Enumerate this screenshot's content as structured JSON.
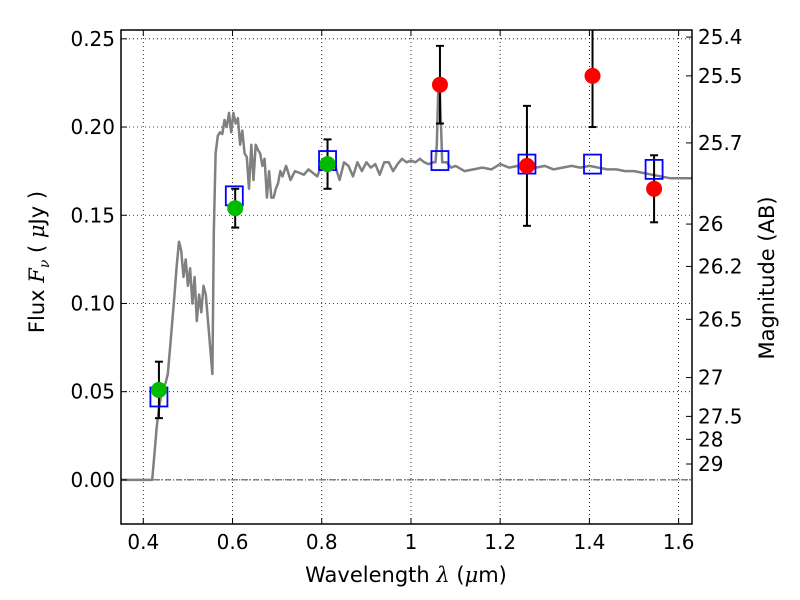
{
  "chart_data": {
    "type": "scatter",
    "title": "",
    "xlabel": "Wavelength  λ (μm)",
    "ylabel": "Flux  F_ν  ( μJy )",
    "xlabel_parts": {
      "prefix": "Wavelength  ",
      "symbol": "λ",
      "unit_open": " (",
      "unit_mu": "μ",
      "unit_rest": "m)"
    },
    "ylabel_parts": {
      "prefix": "Flux  ",
      "symbol": "F",
      "subscript": "ν",
      "unit_open": "  ( ",
      "unit_mu": "μ",
      "unit_rest": "Jy )"
    },
    "y2label": "Magnitude (AB)",
    "xlim": [
      0.35,
      1.63
    ],
    "ylim": [
      -0.025,
      0.255
    ],
    "x_ticks": [
      0.4,
      0.6,
      0.8,
      1.0,
      1.2,
      1.4,
      1.6
    ],
    "x_tick_labels": [
      "0.4",
      "0.6",
      "0.8",
      "1",
      "1.2",
      "1.4",
      "1.6"
    ],
    "y_ticks": [
      0.0,
      0.05,
      0.1,
      0.15,
      0.2,
      0.25
    ],
    "y_tick_labels": [
      "0.00",
      "0.05",
      "0.10",
      "0.15",
      "0.20",
      "0.25"
    ],
    "y2_ticks": [
      {
        "label": "25.4",
        "flux": 0.251
      },
      {
        "label": "25.5",
        "flux": 0.229
      },
      {
        "label": "25.7",
        "flux": 0.191
      },
      {
        "label": "26",
        "flux": 0.145
      },
      {
        "label": "26.2",
        "flux": 0.121
      },
      {
        "label": "26.5",
        "flux": 0.091
      },
      {
        "label": "27",
        "flux": 0.058
      },
      {
        "label": "27.5",
        "flux": 0.036
      },
      {
        "label": "28",
        "flux": 0.023
      },
      {
        "label": "29",
        "flux": 0.009
      }
    ],
    "grid": true,
    "colors": {
      "model": "#808080",
      "green": "#00bb00",
      "red": "#ff0000",
      "blue": "#0000ff",
      "axis": "#000000"
    },
    "series": [
      {
        "kind": "line",
        "points": [
          [
            0.35,
            0.0
          ],
          [
            0.412,
            0.0
          ],
          [
            0.415,
            0.0
          ],
          [
            0.42,
            0.0
          ],
          [
            0.425,
            0.015
          ],
          [
            0.43,
            0.03
          ],
          [
            0.435,
            0.04
          ],
          [
            0.44,
            0.048
          ],
          [
            0.445,
            0.052
          ],
          [
            0.45,
            0.055
          ],
          [
            0.455,
            0.06
          ],
          [
            0.46,
            0.075
          ],
          [
            0.465,
            0.09
          ],
          [
            0.47,
            0.105
          ],
          [
            0.475,
            0.122
          ],
          [
            0.48,
            0.135
          ],
          [
            0.485,
            0.13
          ],
          [
            0.49,
            0.115
          ],
          [
            0.495,
            0.125
          ],
          [
            0.5,
            0.11
          ],
          [
            0.505,
            0.12
          ],
          [
            0.51,
            0.1
          ],
          [
            0.515,
            0.115
          ],
          [
            0.52,
            0.09
          ],
          [
            0.525,
            0.105
          ],
          [
            0.53,
            0.095
          ],
          [
            0.535,
            0.11
          ],
          [
            0.54,
            0.105
          ],
          [
            0.545,
            0.09
          ],
          [
            0.55,
            0.075
          ],
          [
            0.555,
            0.06
          ],
          [
            0.558,
            0.14
          ],
          [
            0.562,
            0.185
          ],
          [
            0.567,
            0.195
          ],
          [
            0.572,
            0.197
          ],
          [
            0.577,
            0.196
          ],
          [
            0.582,
            0.204
          ],
          [
            0.587,
            0.2
          ],
          [
            0.592,
            0.208
          ],
          [
            0.597,
            0.197
          ],
          [
            0.602,
            0.208
          ],
          [
            0.607,
            0.202
          ],
          [
            0.612,
            0.205
          ],
          [
            0.617,
            0.19
          ],
          [
            0.622,
            0.198
          ],
          [
            0.627,
            0.185
          ],
          [
            0.632,
            0.183
          ],
          [
            0.637,
            0.165
          ],
          [
            0.642,
            0.19
          ],
          [
            0.647,
            0.17
          ],
          [
            0.652,
            0.19
          ],
          [
            0.657,
            0.187
          ],
          [
            0.662,
            0.185
          ],
          [
            0.667,
            0.178
          ],
          [
            0.672,
            0.182
          ],
          [
            0.677,
            0.16
          ],
          [
            0.682,
            0.175
          ],
          [
            0.687,
            0.16
          ],
          [
            0.692,
            0.16
          ],
          [
            0.697,
            0.165
          ],
          [
            0.702,
            0.168
          ],
          [
            0.707,
            0.175
          ],
          [
            0.712,
            0.172
          ],
          [
            0.72,
            0.178
          ],
          [
            0.73,
            0.17
          ],
          [
            0.74,
            0.175
          ],
          [
            0.75,
            0.174
          ],
          [
            0.76,
            0.173
          ],
          [
            0.77,
            0.176
          ],
          [
            0.78,
            0.174
          ],
          [
            0.79,
            0.172
          ],
          [
            0.8,
            0.179
          ],
          [
            0.81,
            0.178
          ],
          [
            0.82,
            0.18
          ],
          [
            0.83,
            0.178
          ],
          [
            0.84,
            0.17
          ],
          [
            0.85,
            0.18
          ],
          [
            0.86,
            0.178
          ],
          [
            0.87,
            0.172
          ],
          [
            0.88,
            0.18
          ],
          [
            0.89,
            0.175
          ],
          [
            0.9,
            0.18
          ],
          [
            0.91,
            0.177
          ],
          [
            0.92,
            0.179
          ],
          [
            0.93,
            0.173
          ],
          [
            0.94,
            0.18
          ],
          [
            0.95,
            0.18
          ],
          [
            0.96,
            0.175
          ],
          [
            0.97,
            0.179
          ],
          [
            0.98,
            0.182
          ],
          [
            0.99,
            0.18
          ],
          [
            1.0,
            0.181
          ],
          [
            1.01,
            0.18
          ],
          [
            1.02,
            0.182
          ],
          [
            1.03,
            0.18
          ],
          [
            1.04,
            0.179
          ],
          [
            1.05,
            0.18
          ],
          [
            1.055,
            0.18
          ],
          [
            1.058,
            0.19
          ],
          [
            1.061,
            0.22
          ],
          [
            1.064,
            0.225
          ],
          [
            1.067,
            0.205
          ],
          [
            1.07,
            0.18
          ],
          [
            1.08,
            0.18
          ],
          [
            1.09,
            0.177
          ],
          [
            1.1,
            0.178
          ],
          [
            1.12,
            0.175
          ],
          [
            1.14,
            0.176
          ],
          [
            1.16,
            0.177
          ],
          [
            1.18,
            0.176
          ],
          [
            1.2,
            0.179
          ],
          [
            1.22,
            0.177
          ],
          [
            1.24,
            0.178
          ],
          [
            1.26,
            0.176
          ],
          [
            1.28,
            0.177
          ],
          [
            1.3,
            0.178
          ],
          [
            1.32,
            0.176
          ],
          [
            1.34,
            0.177
          ],
          [
            1.36,
            0.178
          ],
          [
            1.38,
            0.177
          ],
          [
            1.4,
            0.178
          ],
          [
            1.42,
            0.177
          ],
          [
            1.44,
            0.176
          ],
          [
            1.46,
            0.176
          ],
          [
            1.48,
            0.175
          ],
          [
            1.5,
            0.175
          ],
          [
            1.52,
            0.174
          ],
          [
            1.54,
            0.173
          ],
          [
            1.56,
            0.172
          ],
          [
            1.58,
            0.171
          ],
          [
            1.6,
            0.171
          ],
          [
            1.63,
            0.171
          ]
        ]
      },
      {
        "kind": "green-points",
        "points": [
          {
            "x": 0.435,
            "y": 0.051,
            "yerr_lo": 0.016,
            "yerr_hi": 0.016
          },
          {
            "x": 0.606,
            "y": 0.154,
            "yerr_lo": 0.011,
            "yerr_hi": 0.011
          },
          {
            "x": 0.813,
            "y": 0.179,
            "yerr_lo": 0.014,
            "yerr_hi": 0.014
          }
        ]
      },
      {
        "kind": "red-points",
        "points": [
          {
            "x": 1.065,
            "y": 0.224,
            "yerr_lo": 0.022,
            "yerr_hi": 0.022
          },
          {
            "x": 1.26,
            "y": 0.178,
            "yerr_lo": 0.034,
            "yerr_hi": 0.034
          },
          {
            "x": 1.407,
            "y": 0.229,
            "yerr_lo": 0.029,
            "yerr_hi": 0.029
          },
          {
            "x": 1.545,
            "y": 0.165,
            "yerr_lo": 0.019,
            "yerr_hi": 0.019
          }
        ]
      },
      {
        "kind": "blue-squares",
        "points": [
          {
            "x": 0.435,
            "y": 0.047
          },
          {
            "x": 0.604,
            "y": 0.161
          },
          {
            "x": 0.813,
            "y": 0.181
          },
          {
            "x": 1.065,
            "y": 0.181
          },
          {
            "x": 1.26,
            "y": 0.179
          },
          {
            "x": 1.407,
            "y": 0.179
          },
          {
            "x": 1.545,
            "y": 0.176
          }
        ]
      }
    ],
    "reference_line": {
      "y": 0.0,
      "style": "dash-dot"
    }
  }
}
